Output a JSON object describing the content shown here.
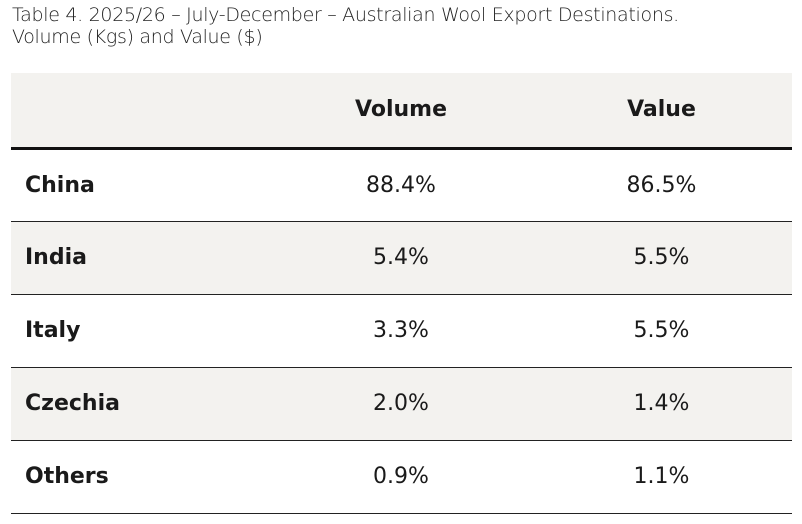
{
  "title_line1": "Table 4. 2025/26 – July-December – Australian Wool Export Destinations.",
  "title_line2": "Volume (Kgs) and Value ($)",
  "columns": [
    "",
    "Volume",
    "Value"
  ],
  "rows": [
    {
      "destination": "China",
      "volume": "88.4%",
      "value": "86.5%"
    },
    {
      "destination": "India",
      "volume": "5.4%",
      "value": "5.5%"
    },
    {
      "destination": "Italy",
      "volume": "3.3%",
      "value": "5.5%"
    },
    {
      "destination": "Czechia",
      "volume": "2.0%",
      "value": "1.4%"
    },
    {
      "destination": "Others",
      "volume": "0.9%",
      "value": "1.1%"
    }
  ],
  "colors": {
    "header_bg": "#f3f2ef",
    "alt_row_bg": "#f3f2ef"
  }
}
